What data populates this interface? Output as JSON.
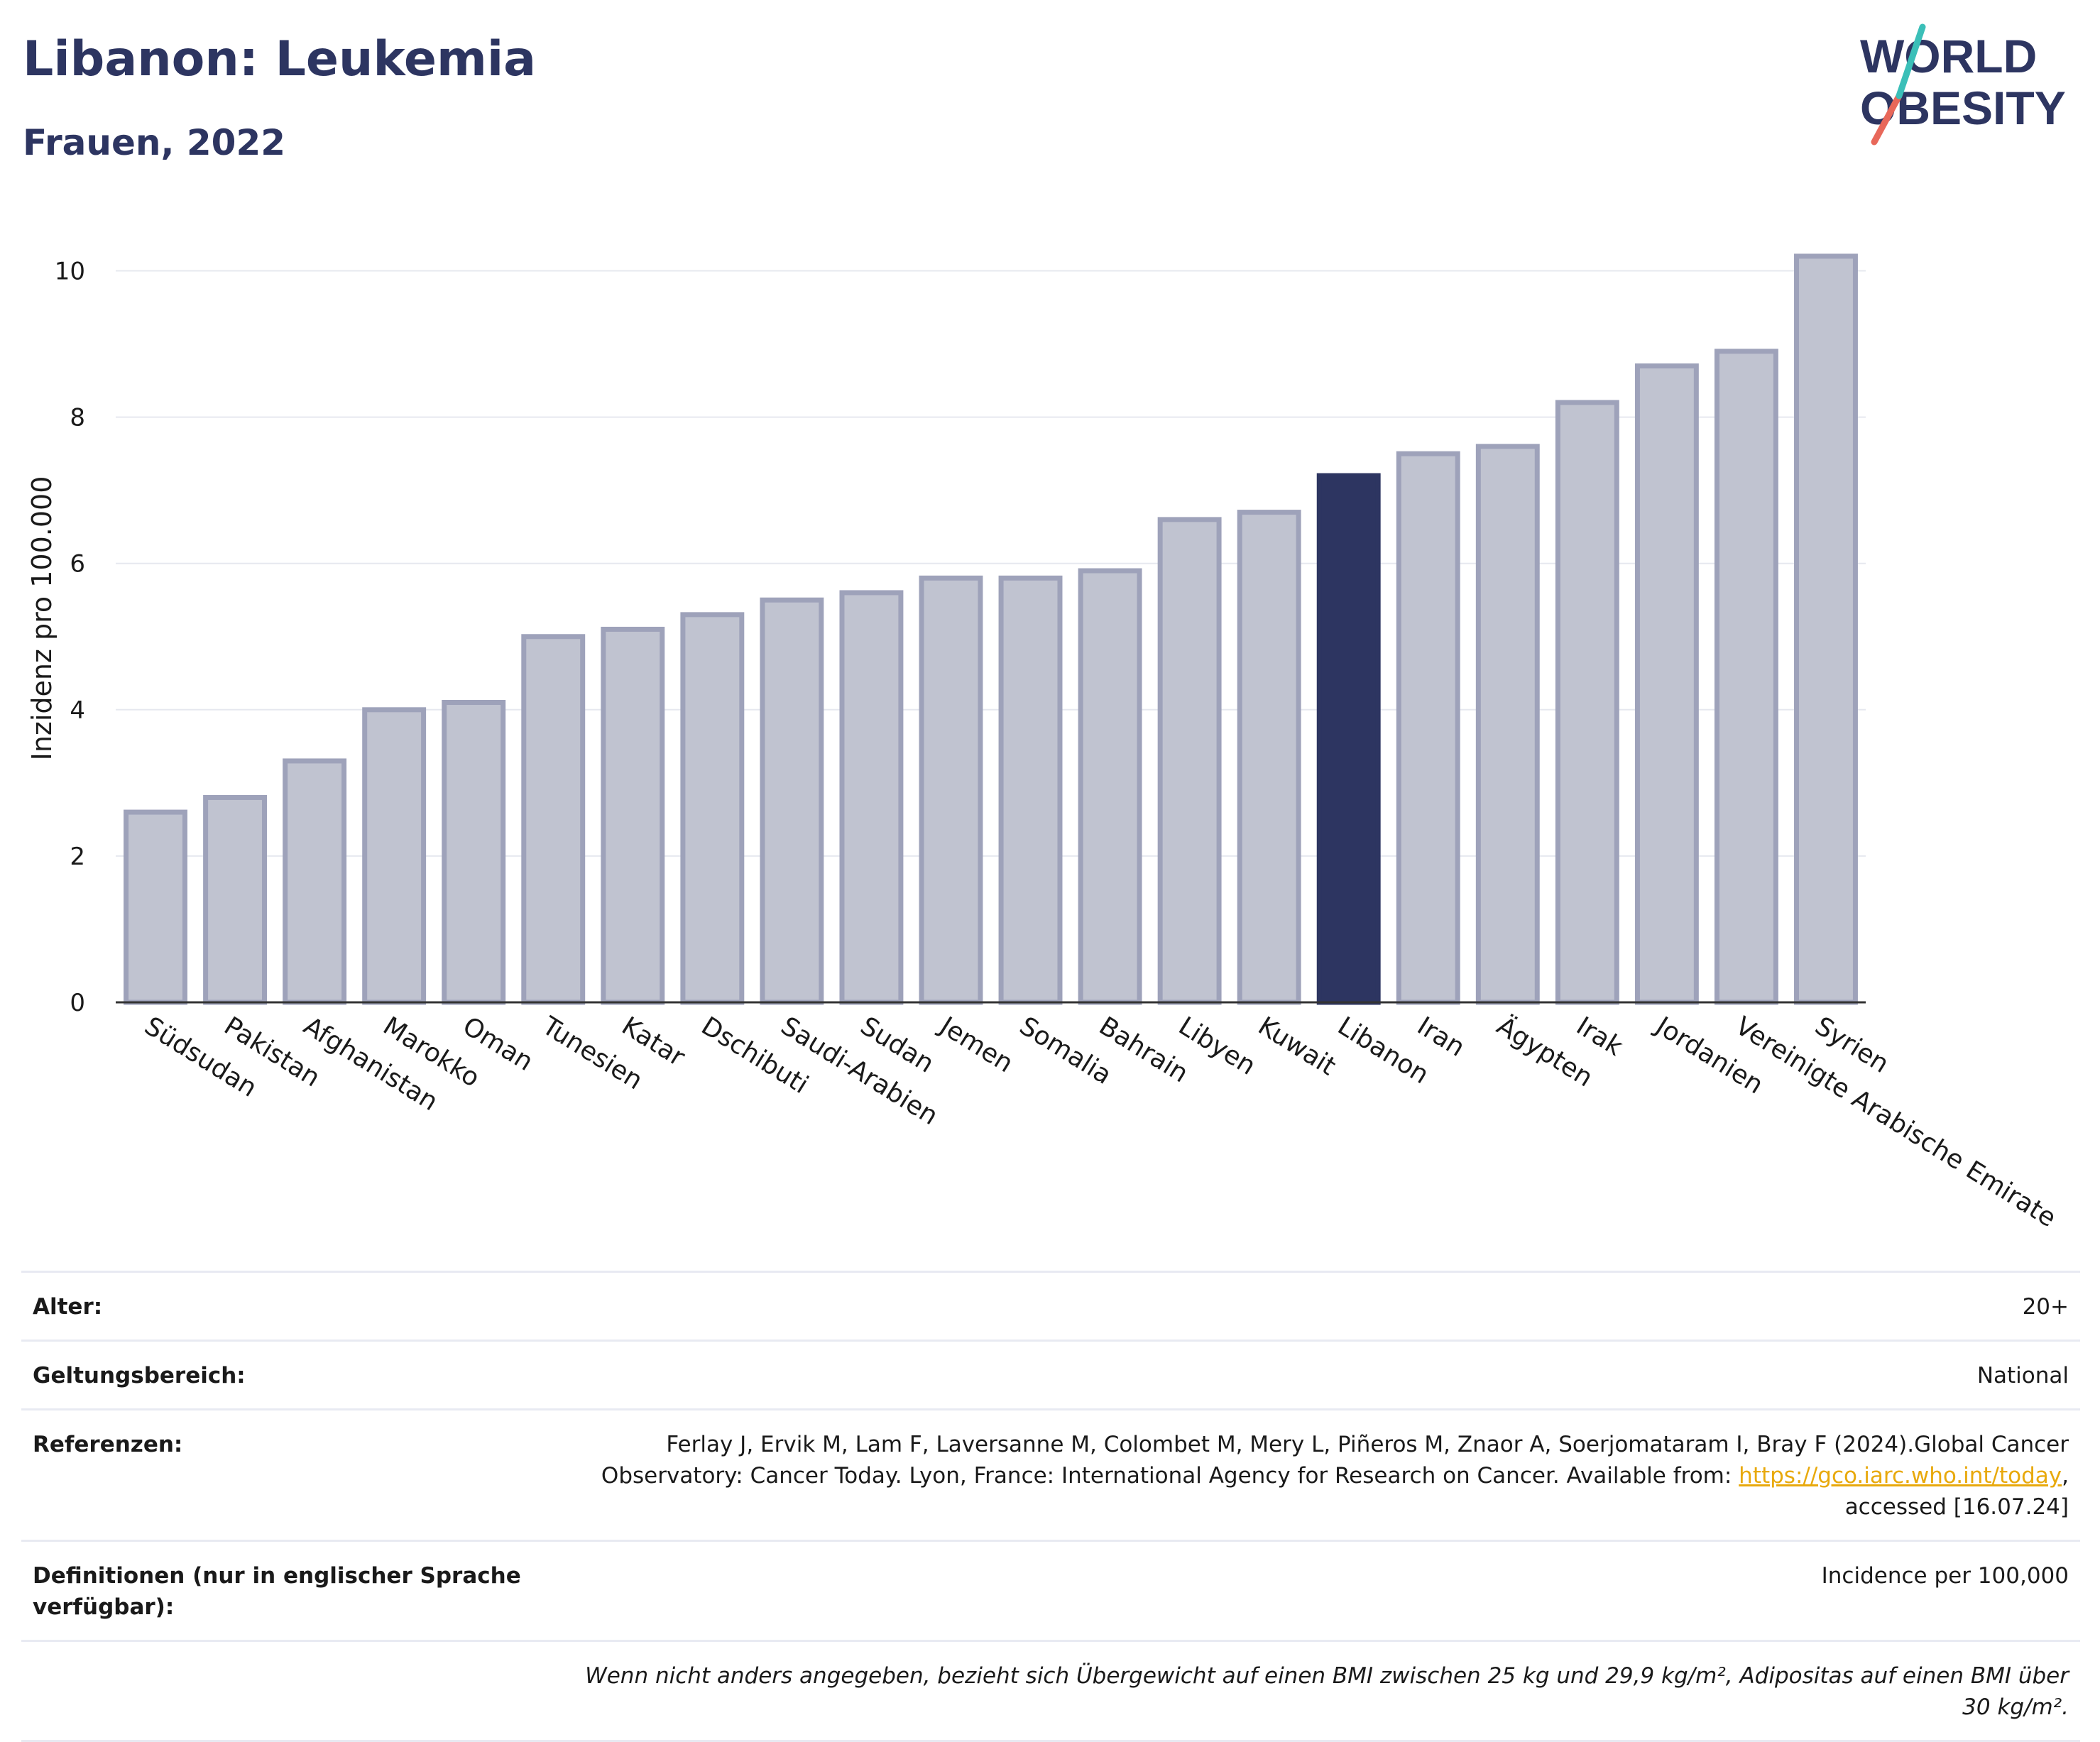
{
  "header": {
    "title": "Libanon: Leukemia",
    "subtitle": "Frauen, 2022"
  },
  "logo": {
    "line1": "WORLD",
    "line2": "OBESITY",
    "text_color": "#2d3561",
    "slash_colors": [
      "#e8685a",
      "#3bbfb8"
    ]
  },
  "chart_data": {
    "type": "bar",
    "categories": [
      "Südsudan",
      "Pakistan",
      "Afghanistan",
      "Marokko",
      "Oman",
      "Tunesien",
      "Katar",
      "Dschibuti",
      "Saudi-Arabien",
      "Sudan",
      "Jemen",
      "Somalia",
      "Bahrain",
      "Libyen",
      "Kuwait",
      "Libanon",
      "Iran",
      "Ägypten",
      "Irak",
      "Jordanien",
      "Vereinigte Arabische Emirate",
      "Syrien"
    ],
    "values": [
      2.6,
      2.8,
      3.3,
      4.0,
      4.1,
      5.0,
      5.1,
      5.3,
      5.5,
      5.6,
      5.8,
      5.8,
      5.9,
      6.6,
      6.7,
      7.2,
      7.5,
      7.6,
      8.2,
      8.7,
      8.9,
      10.2
    ],
    "highlight": "Libanon",
    "ylabel": "Inzidenz pro 100.000",
    "ylim": [
      0,
      10.5
    ],
    "yticks": [
      0,
      2,
      4,
      6,
      8,
      10
    ],
    "grid": true,
    "colors": {
      "bar_fill": "#c0c3d0",
      "bar_stroke": "#9ea2ba",
      "highlight": "#2d3561",
      "grid": "#e6e8ef",
      "axis": "#333333"
    }
  },
  "meta": {
    "age_label": "Alter:",
    "age_value": "20+",
    "scope_label": "Geltungsbereich:",
    "scope_value": "National",
    "refs_label": "Referenzen:",
    "refs_text": "Ferlay J, Ervik M, Lam F, Laversanne M, Colombet M, Mery L, Piñeros M, Znaor A, Soerjomataram I, Bray F (2024).Global Cancer Observatory: Cancer Today. Lyon, France: International Agency for Research on Cancer. Available from:",
    "refs_link": "https://gco.iarc.who.int/today",
    "refs_suffix": ", accessed [16.07.24]",
    "defs_label": "Definitionen (nur in englischer Sprache verfügbar):",
    "defs_value": "Incidence per 100,000",
    "note": "Wenn nicht anders angegeben, bezieht sich Übergewicht auf einen BMI zwischen 25 kg und 29,9 kg/m², Adipositas auf einen BMI über 30 kg/m²."
  }
}
